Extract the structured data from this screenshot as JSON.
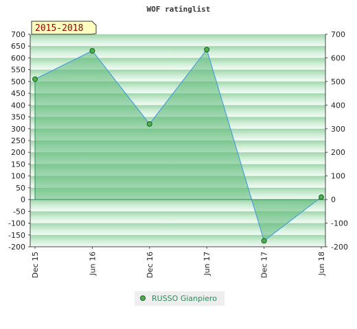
{
  "chart_data": {
    "type": "area",
    "title": "WOF ratinglist",
    "badge": "2015-2018",
    "x": [
      "Dec 15",
      "Jun 16",
      "Dec 16",
      "Jun 17",
      "Dec 17",
      "Jun 18"
    ],
    "series": [
      {
        "name": "RUSSO Gianpiero",
        "values": [
          510,
          630,
          320,
          635,
          -175,
          10
        ]
      }
    ],
    "ylim": [
      -200,
      700
    ],
    "yticks": [
      700,
      650,
      600,
      550,
      500,
      450,
      400,
      350,
      300,
      250,
      200,
      150,
      100,
      50,
      0,
      -50,
      -100,
      -150,
      -200
    ],
    "yticks_right": [
      700,
      600,
      500,
      400,
      300,
      200,
      100,
      0,
      -100,
      -200
    ],
    "legend_position": "bottom-center",
    "grid": true
  },
  "colors": {
    "area_fill": "#5cb878",
    "line": "#4a9fd8",
    "marker": "#4caf50",
    "band_dark": "#a9dbb5",
    "band_light": "#f2faf4",
    "badge_bg": "#ffffc0",
    "badge_text": "#8b0000"
  }
}
